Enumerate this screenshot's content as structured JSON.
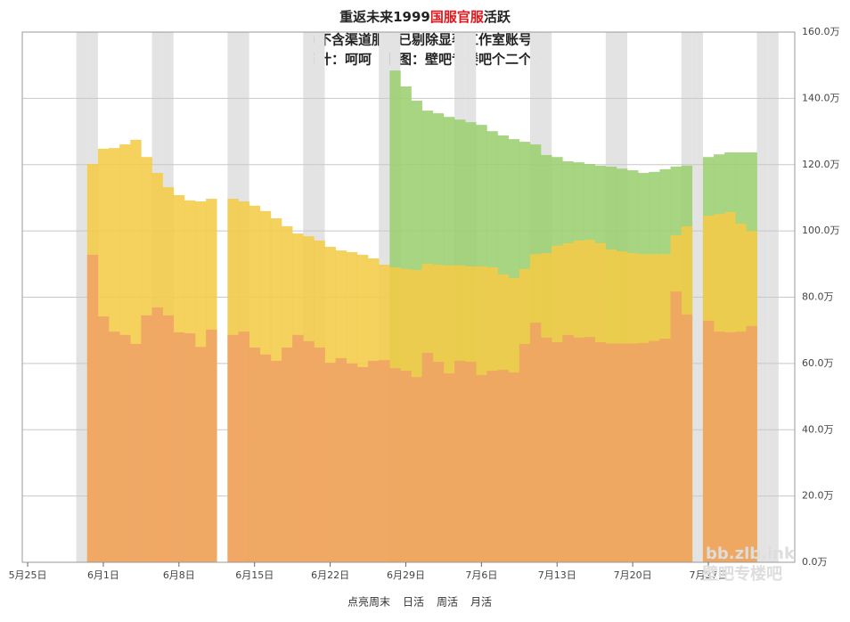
{
  "chart_data": {
    "type": "bar",
    "title_segments": [
      {
        "text": "重返未来1999",
        "color": "#222222"
      },
      {
        "text": "国服官服",
        "color": "#e8161b"
      },
      {
        "text": "活跃",
        "color": "#222222"
      }
    ],
    "subtitle": [
      "(不含渠道服，已剔除显著工作室账号)",
      "统计：呵呵　制图：壁吧专楼吧个二个一"
    ],
    "weekend_toggle": "点亮周末",
    "weekend_days": [
      5,
      6,
      12,
      13,
      19,
      20,
      26,
      27,
      33,
      34,
      40,
      41,
      47,
      48,
      54,
      55,
      61,
      62,
      68,
      69
    ],
    "weekend_color": "#e3e3e3",
    "x": [
      6,
      7,
      8,
      9,
      10,
      11,
      12,
      13,
      14,
      15,
      16,
      17,
      18,
      19,
      20,
      21,
      22,
      23,
      24,
      25,
      26,
      27,
      28,
      29,
      30,
      31,
      32,
      33,
      34,
      35,
      36,
      37,
      38,
      39,
      40,
      41,
      42,
      43,
      44,
      45,
      46,
      47,
      48,
      49,
      50,
      51,
      52,
      53,
      54,
      55,
      56,
      57,
      58,
      59,
      60,
      61,
      62,
      63,
      64,
      65,
      66,
      67
    ],
    "xlim": [
      -0.5,
      71
    ],
    "xticks": [
      {
        "value": 0,
        "label": "5月25日"
      },
      {
        "value": 7,
        "label": "6月1日"
      },
      {
        "value": 14,
        "label": "6月8日"
      },
      {
        "value": 21,
        "label": "6月15日"
      },
      {
        "value": 28,
        "label": "6月22日"
      },
      {
        "value": 35,
        "label": "6月29日"
      },
      {
        "value": 42,
        "label": "7月6日"
      },
      {
        "value": 49,
        "label": "7月13日"
      },
      {
        "value": 56,
        "label": "7月20日"
      },
      {
        "value": 63,
        "label": "7月27日"
      }
    ],
    "ylim": [
      0,
      160
    ],
    "yticks": [
      {
        "value": 0,
        "label": "0.0万"
      },
      {
        "value": 20,
        "label": "20.0万"
      },
      {
        "value": 40,
        "label": "40.0万"
      },
      {
        "value": 60,
        "label": "60.0万"
      },
      {
        "value": 80,
        "label": "80.0万"
      },
      {
        "value": 100,
        "label": "100.0万"
      },
      {
        "value": 120,
        "label": "120.0万"
      },
      {
        "value": 140,
        "label": "140.0万"
      },
      {
        "value": 160,
        "label": "160.0万"
      }
    ],
    "grid": true,
    "series": [
      {
        "name": "日活",
        "color": "#efa365",
        "values": [
          92.8,
          74.2,
          69.6,
          68.6,
          65.9,
          74.5,
          76.9,
          74.5,
          69.4,
          69.1,
          65,
          70.2,
          null,
          68.6,
          69.6,
          64.8,
          62.7,
          60.8,
          64.8,
          68.6,
          66.7,
          64.8,
          60.2,
          61.6,
          60,
          58.9,
          60.8,
          61,
          58.6,
          57.8,
          55.9,
          63.2,
          60.5,
          57,
          60.8,
          60.5,
          56.5,
          57.8,
          58.1,
          57.3,
          65.9,
          72.3,
          67.8,
          66.4,
          68.6,
          67.8,
          68,
          66.4,
          66,
          66,
          66,
          66.2,
          66.8,
          67.5,
          81.7,
          74.8,
          null,
          72.9,
          69.6,
          69.4,
          69.6,
          71.3
        ]
      },
      {
        "name": "周活",
        "color": "#f4cb47",
        "values": [
          120.2,
          124.8,
          125,
          126.1,
          127.5,
          122.3,
          117.5,
          113.2,
          110.8,
          109.2,
          108.9,
          109.7,
          null,
          109.7,
          108.9,
          107.6,
          106,
          103.8,
          101.4,
          99.2,
          98.4,
          97.1,
          95.2,
          94.1,
          93.6,
          92.8,
          91.7,
          89.8,
          89,
          88.5,
          88.2,
          90.1,
          89.8,
          89.6,
          89.6,
          89.3,
          89.3,
          89,
          86.9,
          85.8,
          88.5,
          93,
          93.3,
          95.5,
          96.3,
          97.1,
          97.3,
          96.3,
          94.4,
          93.8,
          93.3,
          93,
          93,
          93,
          98.7,
          101.4,
          null,
          104.6,
          105.1,
          105.7,
          102.2,
          100
        ]
      },
      {
        "name": "月活",
        "color": "#9ccf6f",
        "values": [
          null,
          null,
          null,
          null,
          null,
          null,
          null,
          null,
          null,
          null,
          null,
          null,
          null,
          null,
          null,
          null,
          null,
          null,
          null,
          null,
          null,
          null,
          null,
          null,
          null,
          null,
          null,
          null,
          148.4,
          143.6,
          139.3,
          136.3,
          135.5,
          134.4,
          133.6,
          132.8,
          132,
          130.1,
          128.8,
          127.7,
          126.9,
          126.1,
          122.9,
          122.3,
          121,
          120.7,
          120.2,
          119.7,
          119.4,
          118.8,
          118.3,
          117.5,
          117.8,
          118.6,
          119.4,
          119.7,
          null,
          122.3,
          123.1,
          123.7,
          123.7,
          123.7
        ]
      }
    ],
    "watermark": [
      "bb.zlb.ink",
      "壁吧专楼吧"
    ]
  }
}
